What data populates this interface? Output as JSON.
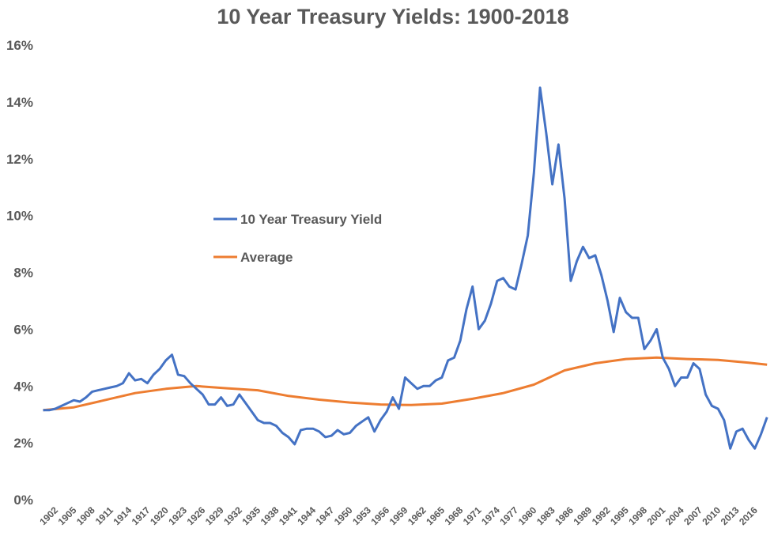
{
  "chart_data": {
    "type": "line",
    "title": "10 Year Treasury Yields: 1900-2018",
    "xlim": [
      1900,
      2019
    ],
    "ylim": [
      0,
      16
    ],
    "yticks": [
      {
        "value": 0,
        "label": "0%"
      },
      {
        "value": 2,
        "label": "2%"
      },
      {
        "value": 4,
        "label": "4%"
      },
      {
        "value": 6,
        "label": "6%"
      },
      {
        "value": 8,
        "label": "8%"
      },
      {
        "value": 10,
        "label": "10%"
      },
      {
        "value": 12,
        "label": "12%"
      },
      {
        "value": 14,
        "label": "14%"
      },
      {
        "value": 16,
        "label": "16%"
      }
    ],
    "xticks": [
      1902,
      1905,
      1908,
      1911,
      1914,
      1917,
      1920,
      1923,
      1926,
      1929,
      1932,
      1935,
      1938,
      1941,
      1944,
      1947,
      1950,
      1953,
      1956,
      1959,
      1962,
      1965,
      1968,
      1971,
      1974,
      1977,
      1980,
      1983,
      1986,
      1989,
      1992,
      1995,
      1998,
      2001,
      2004,
      2007,
      2010,
      2013,
      2016
    ],
    "grid": false,
    "legend": "center-left",
    "series": [
      {
        "name": "10 Year Treasury Yield",
        "color": "#4472c4",
        "x": [
          1900,
          1901,
          1902,
          1903,
          1904,
          1905,
          1906,
          1907,
          1908,
          1909,
          1910,
          1911,
          1912,
          1913,
          1914,
          1915,
          1916,
          1917,
          1918,
          1919,
          1920,
          1921,
          1922,
          1923,
          1924,
          1925,
          1926,
          1927,
          1928,
          1929,
          1930,
          1931,
          1932,
          1933,
          1934,
          1935,
          1936,
          1937,
          1938,
          1939,
          1940,
          1941,
          1942,
          1943,
          1944,
          1945,
          1946,
          1947,
          1948,
          1949,
          1950,
          1951,
          1952,
          1953,
          1954,
          1955,
          1956,
          1957,
          1958,
          1959,
          1960,
          1961,
          1962,
          1963,
          1964,
          1965,
          1966,
          1967,
          1968,
          1969,
          1970,
          1971,
          1972,
          1973,
          1974,
          1975,
          1976,
          1977,
          1978,
          1979,
          1980,
          1981,
          1982,
          1983,
          1984,
          1985,
          1986,
          1987,
          1988,
          1989,
          1990,
          1991,
          1992,
          1993,
          1994,
          1995,
          1996,
          1997,
          1998,
          1999,
          2000,
          2001,
          2002,
          2003,
          2004,
          2005,
          2006,
          2007,
          2008,
          2009,
          2010,
          2011,
          2012,
          2013,
          2014,
          2015,
          2016,
          2017,
          2018
        ],
        "values": [
          3.15,
          3.15,
          3.2,
          3.3,
          3.4,
          3.5,
          3.45,
          3.6,
          3.8,
          3.85,
          3.9,
          3.95,
          4.0,
          4.1,
          4.45,
          4.2,
          4.25,
          4.1,
          4.4,
          4.6,
          4.9,
          5.1,
          4.4,
          4.35,
          4.1,
          3.9,
          3.7,
          3.35,
          3.35,
          3.6,
          3.3,
          3.35,
          3.7,
          3.4,
          3.1,
          2.8,
          2.7,
          2.7,
          2.6,
          2.35,
          2.2,
          1.95,
          2.45,
          2.5,
          2.5,
          2.4,
          2.2,
          2.25,
          2.45,
          2.3,
          2.35,
          2.6,
          2.75,
          2.9,
          2.4,
          2.8,
          3.1,
          3.6,
          3.2,
          4.3,
          4.1,
          3.9,
          4.0,
          4.0,
          4.2,
          4.3,
          4.9,
          5.0,
          5.6,
          6.7,
          7.5,
          6.0,
          6.3,
          6.9,
          7.7,
          7.8,
          7.5,
          7.4,
          8.3,
          9.3,
          11.5,
          14.5,
          12.9,
          11.1,
          12.5,
          10.6,
          7.7,
          8.4,
          8.9,
          8.5,
          8.6,
          7.9,
          7.0,
          5.9,
          7.1,
          6.6,
          6.4,
          6.4,
          5.3,
          5.6,
          6.0,
          5.0,
          4.6,
          4.0,
          4.3,
          4.3,
          4.8,
          4.6,
          3.7,
          3.3,
          3.2,
          2.8,
          1.8,
          2.4,
          2.5,
          2.1,
          1.8,
          2.3,
          2.9
        ]
      },
      {
        "name": "Average",
        "color": "#ed7d31",
        "x": [
          1900,
          1905,
          1910,
          1915,
          1920,
          1925,
          1930,
          1935,
          1940,
          1945,
          1950,
          1955,
          1960,
          1965,
          1970,
          1975,
          1980,
          1985,
          1990,
          1995,
          2000,
          2005,
          2010,
          2015,
          2018
        ],
        "values": [
          3.15,
          3.25,
          3.5,
          3.75,
          3.9,
          4.0,
          3.92,
          3.85,
          3.65,
          3.52,
          3.42,
          3.35,
          3.33,
          3.38,
          3.55,
          3.75,
          4.05,
          4.55,
          4.8,
          4.95,
          5.0,
          4.95,
          4.92,
          4.82,
          4.75
        ]
      }
    ]
  }
}
